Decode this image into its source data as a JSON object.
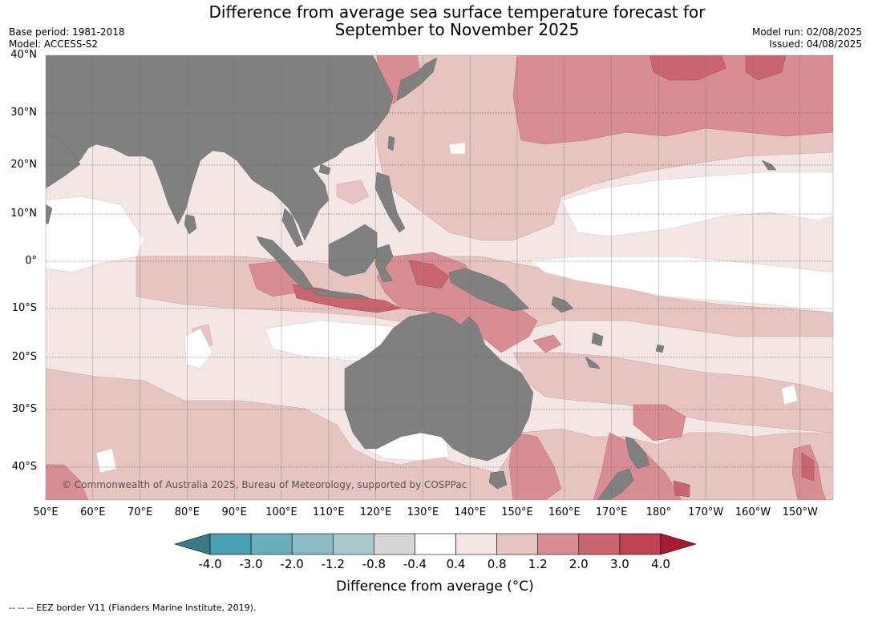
{
  "title_line1": "Difference from average sea surface temperature forecast for",
  "title_line2": "September to November 2025",
  "meta_left": {
    "base_period": "Base period: 1981-2018",
    "model": "Model: ACCESS-S2"
  },
  "meta_right": {
    "model_run": "Model run: 02/08/2025",
    "issued": "Issued: 04/08/2025"
  },
  "latitude_labels": [
    "40°N",
    "30°N",
    "20°N",
    "10°N",
    "0°",
    "10°S",
    "20°S",
    "30°S",
    "40°S"
  ],
  "longitude_labels": [
    "50°E",
    "60°E",
    "70°E",
    "80°E",
    "90°E",
    "100°E",
    "110°E",
    "120°E",
    "130°E",
    "140°E",
    "150°E",
    "160°E",
    "170°E",
    "180°",
    "170°W",
    "160°W",
    "150°W"
  ],
  "copyright": "© Commonwealth of Australia 2025, Bureau of Meteorology, supported by COSPPac",
  "colorbar": {
    "ticks": [
      "-4.0",
      "-3.0",
      "-2.0",
      "-1.2",
      "-0.8",
      "-0.4",
      "0.4",
      "0.8",
      "1.2",
      "2.0",
      "3.0",
      "4.0"
    ],
    "colors": [
      "#3a7a85",
      "#47a0b2",
      "#6aaebb",
      "#8cbac5",
      "#a9c8cc",
      "#d6d6d6",
      "#ffffff",
      "#f3e6e5",
      "#e6c4c1",
      "#d88c94",
      "#c8656f",
      "#be424f",
      "#a81b32"
    ],
    "label": "Difference from average (°C)"
  },
  "colors": {
    "land": "#808080",
    "ocean_base": "#f3e6e5",
    "warm1": "#e6c4c1",
    "warm2": "#d88c94",
    "warm3": "#c8656f"
  },
  "footer": "--  --  -- EEZ border V11 (Flanders Marine Institute, 2019)."
}
